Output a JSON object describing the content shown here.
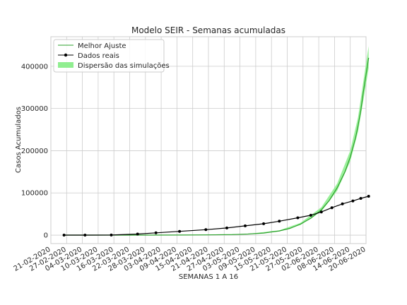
{
  "chart_data": {
    "type": "line",
    "title": "Modelo SEIR - Semanas acumuladas",
    "xlabel": "SEMANAS 1 A 16",
    "ylabel": "Casos Acumulados",
    "x_range": [
      "2020-02-21",
      "2020-06-20"
    ],
    "ylim": [
      -20000,
      470000
    ],
    "grid": true,
    "legend_position": "top-left",
    "x_ticks": [
      "21-02-2020",
      "27-02-2020",
      "04-03-2020",
      "10-03-2020",
      "16-03-2020",
      "22-03-2020",
      "28-03-2020",
      "03-04-2020",
      "09-04-2020",
      "15-04-2020",
      "21-04-2020",
      "27-04-2020",
      "03-05-2020",
      "09-05-2020",
      "15-05-2020",
      "21-05-2020",
      "27-05-2020",
      "02-06-2020",
      "08-06-2020",
      "14-06-2020",
      "20-06-2020"
    ],
    "y_ticks": [
      0,
      100000,
      200000,
      300000,
      400000
    ],
    "series": [
      {
        "name": "Melhor Ajuste",
        "style": "line",
        "color": "#2ca02c",
        "points": [
          [
            "2020-02-26",
            0
          ],
          [
            "2020-03-10",
            0
          ],
          [
            "2020-03-25",
            0
          ],
          [
            "2020-04-10",
            200
          ],
          [
            "2020-04-20",
            500
          ],
          [
            "2020-04-30",
            1200
          ],
          [
            "2020-05-06",
            2500
          ],
          [
            "2020-05-12",
            5000
          ],
          [
            "2020-05-18",
            10000
          ],
          [
            "2020-05-22",
            16000
          ],
          [
            "2020-05-26",
            26000
          ],
          [
            "2020-05-30",
            40000
          ],
          [
            "2020-06-03",
            60000
          ],
          [
            "2020-06-06",
            82000
          ],
          [
            "2020-06-09",
            112000
          ],
          [
            "2020-06-12",
            150000
          ],
          [
            "2020-06-14",
            185000
          ],
          [
            "2020-06-16",
            230000
          ],
          [
            "2020-06-17",
            260000
          ],
          [
            "2020-06-18",
            295000
          ],
          [
            "2020-06-19",
            340000
          ],
          [
            "2020-06-20",
            380000
          ],
          [
            "2020-06-21",
            420000
          ]
        ]
      },
      {
        "name": "Dados reais",
        "style": "line-marker",
        "color": "#000000",
        "points": [
          [
            "2020-02-26",
            0
          ],
          [
            "2020-03-05",
            10
          ],
          [
            "2020-03-15",
            200
          ],
          [
            "2020-03-25",
            2500
          ],
          [
            "2020-04-01",
            5500
          ],
          [
            "2020-04-10",
            9000
          ],
          [
            "2020-04-20",
            13000
          ],
          [
            "2020-04-28",
            17000
          ],
          [
            "2020-05-05",
            22000
          ],
          [
            "2020-05-12",
            27000
          ],
          [
            "2020-05-18",
            33000
          ],
          [
            "2020-05-25",
            41000
          ],
          [
            "2020-05-30",
            47000
          ],
          [
            "2020-06-03",
            55000
          ],
          [
            "2020-06-07",
            65000
          ],
          [
            "2020-06-11",
            74000
          ],
          [
            "2020-06-15",
            81000
          ],
          [
            "2020-06-18",
            87000
          ],
          [
            "2020-06-21",
            92000
          ]
        ]
      },
      {
        "name": "Dispersão das simulações",
        "style": "band",
        "color": "#90ee90",
        "lower": [
          [
            "2020-04-10",
            0
          ],
          [
            "2020-05-06",
            2000
          ],
          [
            "2020-05-18",
            9000
          ],
          [
            "2020-05-26",
            24000
          ],
          [
            "2020-06-03",
            56000
          ],
          [
            "2020-06-09",
            105000
          ],
          [
            "2020-06-14",
            175000
          ],
          [
            "2020-06-17",
            245000
          ],
          [
            "2020-06-19",
            320000
          ],
          [
            "2020-06-21",
            395000
          ]
        ],
        "upper": [
          [
            "2020-04-10",
            300
          ],
          [
            "2020-05-06",
            3000
          ],
          [
            "2020-05-18",
            11500
          ],
          [
            "2020-05-26",
            29000
          ],
          [
            "2020-06-03",
            66000
          ],
          [
            "2020-06-09",
            122000
          ],
          [
            "2020-06-14",
            200000
          ],
          [
            "2020-06-17",
            280000
          ],
          [
            "2020-06-19",
            365000
          ],
          [
            "2020-06-21",
            448000
          ]
        ]
      }
    ]
  }
}
